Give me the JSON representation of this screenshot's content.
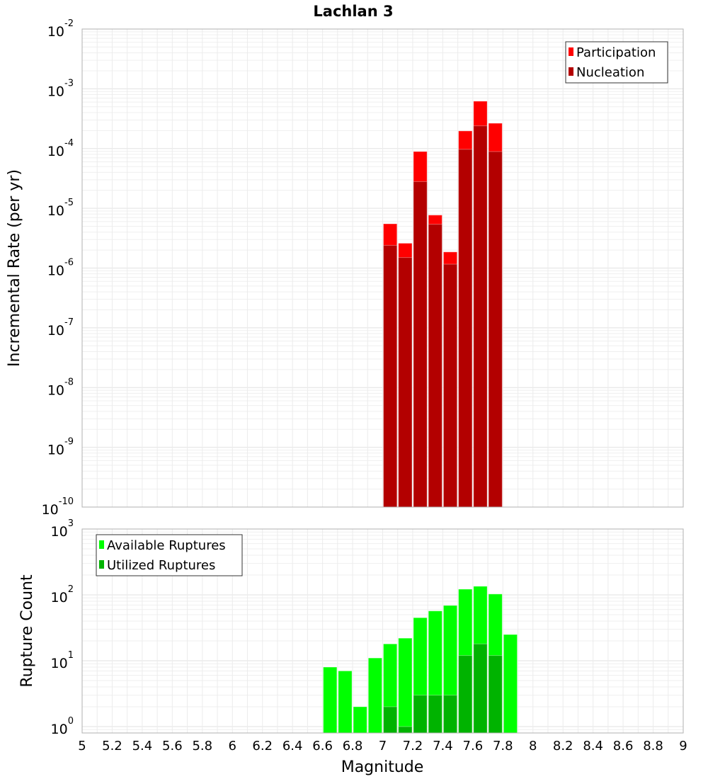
{
  "chart_data": [
    {
      "type": "bar",
      "title": "Lachlan 3",
      "xlabel": "Magnitude",
      "ylabel": "Incremental Rate (per yr)",
      "yscale": "log",
      "xlim": [
        5,
        9
      ],
      "ylim": [
        1e-10,
        0.01
      ],
      "grid": true,
      "legend_position": "top-right",
      "bin_width": 0.1,
      "x": [
        7.05,
        7.15,
        7.25,
        7.35,
        7.45,
        7.55,
        7.65,
        7.75
      ],
      "series": [
        {
          "name": "Participation",
          "color": "#ff0000",
          "values": [
            5.5e-06,
            2.6e-06,
            8.9e-05,
            7.7e-06,
            1.86e-06,
            0.000197,
            0.00062,
            0.000265
          ]
        },
        {
          "name": "Nucleation",
          "color": "#b30000",
          "values": [
            2.4e-06,
            1.5e-06,
            2.8e-05,
            5.4e-06,
            1.16e-06,
            9.7e-05,
            0.00024,
            8.9e-05
          ]
        }
      ],
      "y_tick_exponents": [
        "-2",
        "-3",
        "-4",
        "-5",
        "-6",
        "-7",
        "-8",
        "-9",
        "-10"
      ]
    },
    {
      "type": "bar",
      "xlabel": "Magnitude",
      "ylabel": "Rupture Count",
      "yscale": "log",
      "xlim": [
        5,
        9
      ],
      "ylim": [
        0.8,
        1000
      ],
      "grid": true,
      "legend_position": "top-left",
      "bin_width": 0.1,
      "x": [
        6.65,
        6.75,
        6.85,
        6.95,
        7.05,
        7.15,
        7.25,
        7.35,
        7.45,
        7.55,
        7.65,
        7.75,
        7.85
      ],
      "series": [
        {
          "name": "Available Ruptures",
          "color": "#00ff00",
          "values": [
            8,
            7,
            2,
            11,
            18,
            22,
            45,
            57,
            69,
            122,
            135,
            103,
            25
          ]
        },
        {
          "name": "Utilized Ruptures",
          "color": "#00b300",
          "values": [
            0,
            0,
            0,
            0,
            2,
            1,
            3,
            3,
            3,
            12,
            18,
            12,
            0
          ]
        }
      ],
      "y_tick_exponents": [
        "3",
        "2",
        "1",
        "0"
      ],
      "x_ticks": [
        "5",
        "5.2",
        "5.4",
        "5.6",
        "5.8",
        "6",
        "6.2",
        "6.4",
        "6.6",
        "6.8",
        "7",
        "7.2",
        "7.4",
        "7.6",
        "7.8",
        "8",
        "8.2",
        "8.4",
        "8.6",
        "8.8",
        "9"
      ]
    }
  ]
}
